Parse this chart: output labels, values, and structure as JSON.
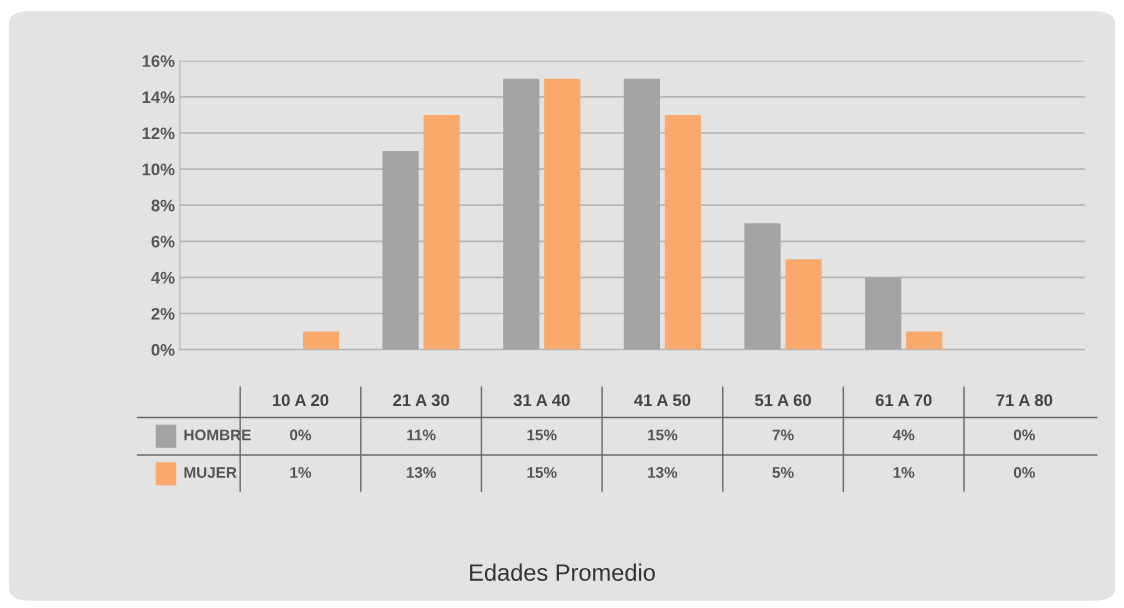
{
  "chart_data": {
    "type": "bar",
    "title": "Edades Promedio",
    "categories": [
      "10 A 20",
      "21 A 30",
      "31 A 40",
      "41 A 50",
      "51 A 60",
      "61 A 70",
      "71 A 80"
    ],
    "series": [
      {
        "name": "HOMBRE",
        "color": "#a3a3a3",
        "values": [
          0,
          11,
          15,
          15,
          7,
          4,
          0
        ],
        "value_labels": [
          "0%",
          "11%",
          "15%",
          "15%",
          "7%",
          "4%",
          "0%"
        ]
      },
      {
        "name": "MUJER",
        "color": "#f9a96b",
        "values": [
          1,
          13,
          15,
          13,
          5,
          1,
          0
        ],
        "value_labels": [
          "1%",
          "13%",
          "15%",
          "13%",
          "5%",
          "1%",
          "0%"
        ]
      }
    ],
    "ylim": [
      0,
      16
    ],
    "yticks": [
      {
        "value": 0,
        "label": "0%"
      },
      {
        "value": 2,
        "label": "2%"
      },
      {
        "value": 4,
        "label": "4%"
      },
      {
        "value": 6,
        "label": "6%"
      },
      {
        "value": 8,
        "label": "8%"
      },
      {
        "value": 10,
        "label": "10%"
      },
      {
        "value": 12,
        "label": "12%"
      },
      {
        "value": 14,
        "label": "14%"
      },
      {
        "value": 16,
        "label": "16%"
      }
    ],
    "grid": "y",
    "legend": "bottom left"
  }
}
